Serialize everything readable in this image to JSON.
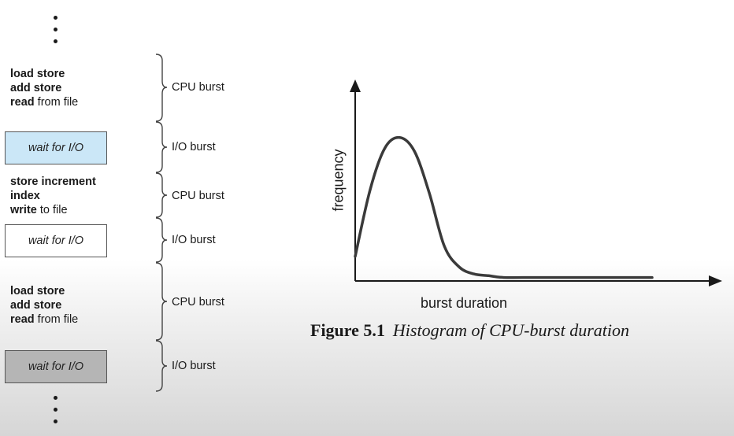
{
  "left_panel": {
    "blocks": [
      {
        "type": "cpu",
        "lines": [
          {
            "bold": "load store",
            "rest": ""
          },
          {
            "bold": "add store",
            "rest": ""
          },
          {
            "bold": "read",
            "rest": " from file"
          }
        ],
        "burst_label": "CPU burst"
      },
      {
        "type": "io",
        "box_text": "wait for I/O",
        "box_color": "#cbe7f7",
        "burst_label": "I/O burst"
      },
      {
        "type": "cpu",
        "lines": [
          {
            "bold": "store increment",
            "rest": ""
          },
          {
            "bold": "index",
            "rest": ""
          },
          {
            "bold": "write",
            "rest": " to file"
          }
        ],
        "burst_label": "CPU burst"
      },
      {
        "type": "io",
        "box_text": "wait for I/O",
        "box_color": "#ffffff",
        "burst_label": "I/O burst"
      },
      {
        "type": "cpu",
        "lines": [
          {
            "bold": "load store",
            "rest": ""
          },
          {
            "bold": "add store",
            "rest": ""
          },
          {
            "bold": "read",
            "rest": " from file"
          }
        ],
        "burst_label": "CPU burst"
      },
      {
        "type": "io",
        "box_text": "wait for I/O",
        "box_color": "#b5b5b5",
        "burst_label": "I/O burst"
      }
    ]
  },
  "chart_data": {
    "type": "line",
    "title": "",
    "xlabel": "burst duration",
    "ylabel": "frequency",
    "description_curve": "single right-skewed peak near short burst durations, long flat tail",
    "series": [
      {
        "x": [
          0,
          5,
          10,
          15,
          20,
          25,
          30,
          35,
          40,
          45,
          50,
          60,
          70,
          80,
          90,
          100
        ],
        "values": [
          0.14,
          0.52,
          0.76,
          0.82,
          0.74,
          0.5,
          0.2,
          0.08,
          0.04,
          0.03,
          0.02,
          0.02,
          0.02,
          0.02,
          0.02,
          0.02
        ]
      }
    ],
    "grid": false
  },
  "caption": {
    "figure": "Figure 5.1",
    "title": "Histogram of CPU-burst duration"
  },
  "colors": {
    "ink": "#1a1a1a",
    "curve": "#3a3a3a",
    "io_box_1": "#cbe7f7",
    "io_box_2": "#ffffff",
    "io_box_3": "#b5b5b5"
  }
}
